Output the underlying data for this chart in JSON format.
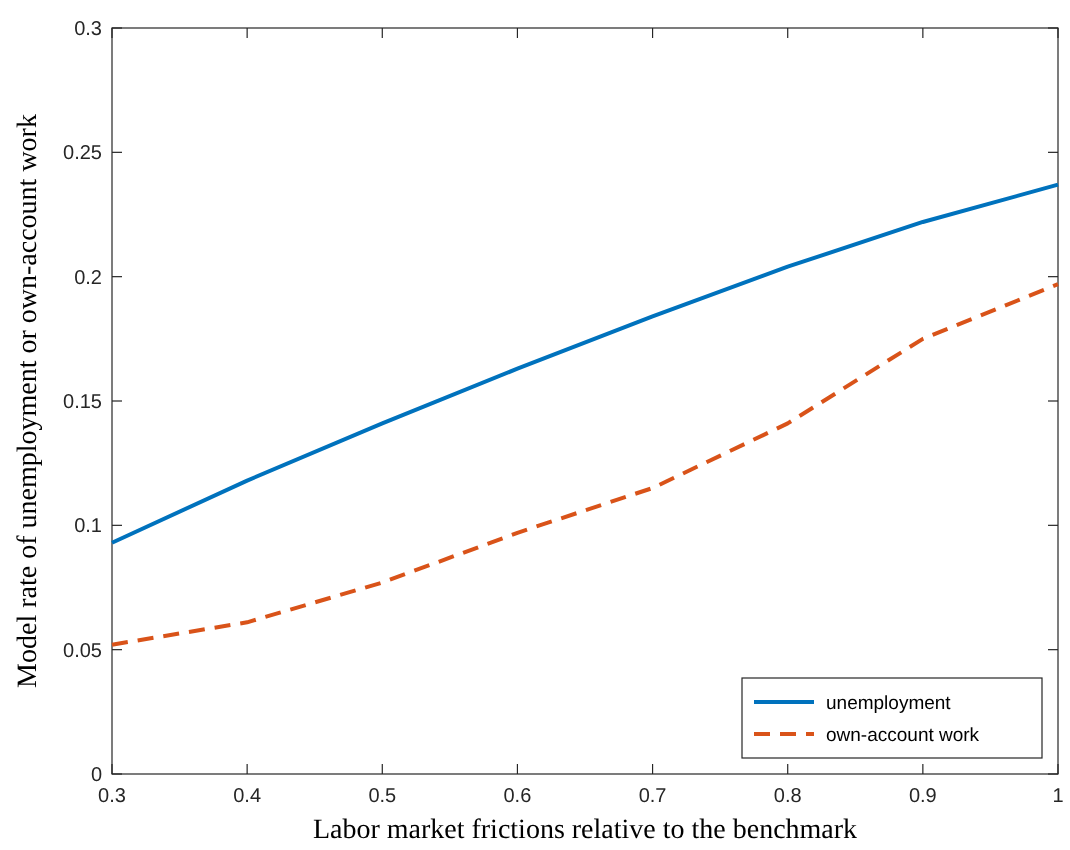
{
  "chart_data": {
    "type": "line",
    "xlabel": "Labor market frictions relative to the benchmark",
    "ylabel": "Model rate of unemployment or own-account work",
    "x": [
      0.3,
      0.4,
      0.5,
      0.6,
      0.7,
      0.8,
      0.9,
      1
    ],
    "series": [
      {
        "name": "unemployment",
        "color": "#0072bd",
        "line_style": "solid",
        "values": [
          0.093,
          0.118,
          0.141,
          0.163,
          0.184,
          0.204,
          0.222,
          0.237
        ]
      },
      {
        "name": "own-account work",
        "color": "#d95319",
        "line_style": "dashed",
        "values": [
          0.052,
          0.061,
          0.077,
          0.097,
          0.115,
          0.141,
          0.175,
          0.197
        ]
      }
    ],
    "xlim": [
      0.3,
      1
    ],
    "xticks": [
      0.3,
      0.4,
      0.5,
      0.6,
      0.7,
      0.8,
      0.9,
      1
    ],
    "ylim": [
      0,
      0.3
    ],
    "yticks": [
      0,
      0.05,
      0.1,
      0.15,
      0.2,
      0.25,
      0.3
    ],
    "legend": "bottom right",
    "grid": false,
    "marker": "none"
  }
}
